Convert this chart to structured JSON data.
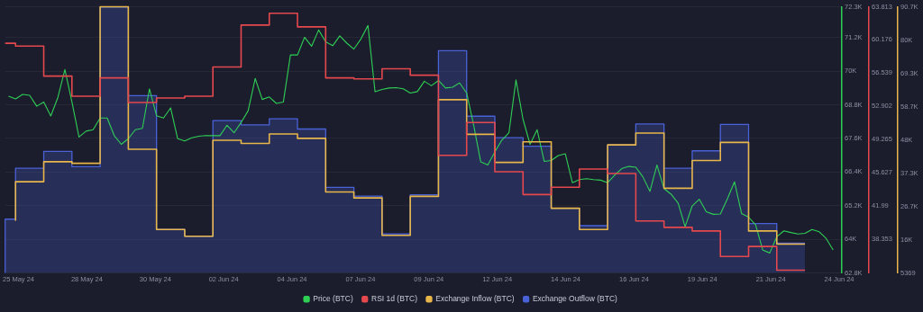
{
  "chart_data": {
    "type": "line",
    "xlim": [
      "--05-24T15:10",
      "--06-23T07:25"
    ],
    "xticks": [
      {
        "value": "--05-25T02:30",
        "label": "25 May 24"
      },
      {
        "value": "--05-27T12:45",
        "label": "28 May 24"
      },
      {
        "value": "--05-29T23:00",
        "label": "30 May 24"
      },
      {
        "value": "--06-01T09:10",
        "label": "02 Jun 24"
      },
      {
        "value": "--06-03T19:25",
        "label": "04 Jun 24"
      },
      {
        "value": "--06-06T05:35",
        "label": "07 Jun 24"
      },
      {
        "value": "--06-08T15:50",
        "label": "09 Jun 24"
      },
      {
        "value": "--06-11T02:00",
        "label": "12 Jun 24"
      },
      {
        "value": "--06-13T12:15",
        "label": "14 Jun 24"
      },
      {
        "value": "--06-15T22:30",
        "label": "16 Jun 24"
      },
      {
        "value": "--06-18T08:40",
        "label": "19 Jun 24"
      },
      {
        "value": "--06-20T18:55",
        "label": "21 Jun 24"
      },
      {
        "value": "--06-23T05:10",
        "label": "24 Jun 24"
      }
    ],
    "ylim": [
      62800,
      72300
    ],
    "yticks": [
      {
        "value": 62800,
        "label": "62.8K"
      },
      {
        "value": 64000,
        "label": "64K"
      },
      {
        "value": 65200,
        "label": "65.2K"
      },
      {
        "value": 66400,
        "label": "66.4K"
      },
      {
        "value": 67600,
        "label": "67.6K"
      },
      {
        "value": 68800,
        "label": "68.8K"
      },
      {
        "value": 70000,
        "label": "70K"
      },
      {
        "value": 71200,
        "label": "71.2K"
      },
      {
        "value": 72300,
        "label": "72.3K"
      }
    ],
    "y2lim": [
      34.6,
      63.813
    ],
    "y2ticks": [
      38.353,
      41.99,
      45.627,
      49.265,
      52.902,
      56.539,
      60.176,
      63.813
    ],
    "y3lim": [
      5369,
      90700
    ],
    "y3ticks": [
      5369,
      {
        "value": 16000,
        "label": "16K"
      },
      {
        "value": 26700,
        "label": "26.7K"
      },
      {
        "value": 37300,
        "label": "37.3K"
      },
      {
        "value": 48000,
        "label": "48K"
      },
      {
        "value": 58700,
        "label": "58.7K"
      },
      {
        "value": 69300,
        "label": "69.3K"
      },
      {
        "value": 80000,
        "label": "80K"
      },
      {
        "value": 90700,
        "label": "90.7K"
      }
    ],
    "grid": "y",
    "legend": "bottom",
    "marker": "none",
    "line_style": "solid",
    "series": [
      {
        "name": "Price (BTC)",
        "axis": "y",
        "color": "#2fcf55",
        "x": [
          "--05-24T18:00",
          "--05-25T00:00",
          "--05-25T06:00",
          "--05-25T12:00",
          "--05-25T18:00",
          "--05-26T00:00",
          "--05-26T06:00",
          "--05-26T12:00",
          "--05-26T18:00",
          "--05-27T00:00",
          "--05-27T06:00",
          "--05-27T12:00",
          "--05-27T18:00",
          "--05-28T00:00",
          "--05-28T06:00",
          "--05-28T12:00",
          "--05-28T18:00",
          "--05-29T00:00",
          "--05-29T06:00",
          "--05-29T12:00",
          "--05-29T18:00",
          "--05-30T00:00",
          "--05-30T06:00",
          "--05-30T12:00",
          "--05-30T18:00",
          "--05-31T00:00",
          "--05-31T06:00",
          "--05-31T12:00",
          "--05-31T18:00",
          "--06-01T00:00",
          "--06-01T06:00",
          "--06-01T12:00",
          "--06-01T18:00",
          "--06-02T00:00",
          "--06-02T06:00",
          "--06-02T12:00",
          "--06-02T18:00",
          "--06-03T00:00",
          "--06-03T06:00",
          "--06-03T12:00",
          "--06-03T18:00",
          "--06-04T00:00",
          "--06-04T06:00",
          "--06-04T12:00",
          "--06-04T18:00",
          "--06-05T00:00",
          "--06-05T06:00",
          "--06-05T12:00",
          "--06-05T18:00",
          "--06-06T00:00",
          "--06-06T06:00",
          "--06-06T12:00",
          "--06-06T18:00",
          "--06-07T00:00",
          "--06-07T06:00",
          "--06-07T12:00",
          "--06-07T18:00",
          "--06-08T00:00",
          "--06-08T06:00",
          "--06-08T12:00",
          "--06-08T18:00",
          "--06-09T00:00",
          "--06-09T06:00",
          "--06-09T12:00",
          "--06-09T18:00",
          "--06-10T00:00",
          "--06-10T06:00",
          "--06-10T12:00",
          "--06-10T18:00",
          "--06-11T00:00",
          "--06-11T06:00",
          "--06-11T12:00",
          "--06-11T18:00",
          "--06-12T00:00",
          "--06-12T06:00",
          "--06-12T12:00",
          "--06-12T18:00",
          "--06-13T00:00",
          "--06-13T06:00",
          "--06-13T12:00",
          "--06-13T18:00",
          "--06-14T00:00",
          "--06-14T06:00",
          "--06-14T12:00",
          "--06-14T18:00",
          "--06-15T00:00",
          "--06-15T06:00",
          "--06-15T12:00",
          "--06-15T18:00",
          "--06-16T00:00",
          "--06-16T06:00",
          "--06-16T12:00",
          "--06-16T18:00",
          "--06-17T00:00",
          "--06-17T06:00",
          "--06-17T12:00",
          "--06-17T18:00",
          "--06-18T00:00",
          "--06-18T06:00",
          "--06-18T12:00",
          "--06-18T18:00",
          "--06-19T00:00",
          "--06-19T06:00",
          "--06-19T12:00",
          "--06-19T18:00",
          "--06-20T00:00",
          "--06-20T06:00",
          "--06-20T12:00",
          "--06-20T18:00",
          "--06-21T00:00",
          "--06-21T06:00",
          "--06-21T12:00",
          "--06-21T18:00",
          "--06-22T00:00",
          "--06-22T06:00",
          "--06-22T12:00",
          "--06-22T18:00",
          "--06-23T00:00"
        ],
        "values": [
          69110,
          69010,
          69170,
          69140,
          68750,
          68900,
          68400,
          69060,
          70060,
          68900,
          67650,
          67860,
          67910,
          68330,
          68330,
          67700,
          67390,
          67590,
          67910,
          67960,
          69370,
          68410,
          68330,
          68690,
          67590,
          67510,
          67620,
          67680,
          67700,
          67700,
          67700,
          68070,
          67800,
          68170,
          68590,
          69740,
          68990,
          69080,
          68850,
          68900,
          70580,
          70580,
          71210,
          70890,
          71470,
          71050,
          70910,
          71260,
          71000,
          70790,
          71150,
          71630,
          69270,
          69350,
          69400,
          69410,
          69370,
          69220,
          69270,
          69640,
          69480,
          69670,
          69400,
          69430,
          69580,
          69220,
          68070,
          66760,
          66650,
          67120,
          67540,
          67800,
          69690,
          68280,
          67390,
          67910,
          66780,
          66810,
          66990,
          67050,
          66020,
          66130,
          66160,
          66130,
          66110,
          66020,
          66290,
          66520,
          66600,
          66570,
          66230,
          65710,
          66650,
          65810,
          65610,
          65290,
          64450,
          65190,
          65430,
          64980,
          64890,
          64900,
          65450,
          66050,
          64920,
          64790,
          64510,
          63620,
          63510,
          64090,
          64300,
          64240,
          64190,
          64210,
          64350,
          64270,
          64030,
          63620
        ]
      },
      {
        "name": "RSI 1d (BTC)",
        "type": "step",
        "axis": "y2",
        "color": "#e5484d",
        "x": [
          "--05-24T15:10",
          "--05-25",
          "--05-26",
          "--05-27",
          "--05-28",
          "--05-29",
          "--05-30",
          "--05-31",
          "--06-01",
          "--06-02",
          "--06-03",
          "--06-04",
          "--06-05",
          "--06-06",
          "--06-07",
          "--06-08",
          "--06-09",
          "--06-10",
          "--06-11",
          "--06-12",
          "--06-13",
          "--06-14",
          "--06-15",
          "--06-16",
          "--06-17",
          "--06-18",
          "--06-19",
          "--06-20",
          "--06-21",
          "--06-22"
        ],
        "values": [
          59.8,
          59.8,
          59.5,
          56.2,
          54.0,
          56.0,
          53.3,
          53.8,
          54.0,
          57.2,
          61.8,
          63.1,
          61.6,
          56.0,
          55.9,
          57.0,
          56.3,
          47.5,
          51.1,
          45.7,
          43.2,
          44.0,
          46.0,
          45.5,
          40.3,
          39.6,
          39.2,
          36.4,
          37.5,
          34.9
        ]
      },
      {
        "name": "Exchange Inflow (BTC)",
        "type": "step",
        "axis": "y3",
        "color": "#e8b64a",
        "x": [
          "--05-25",
          "--05-26",
          "--05-27",
          "--05-28",
          "--05-29",
          "--05-30",
          "--05-31",
          "--06-01",
          "--06-02",
          "--06-03",
          "--06-04",
          "--06-05",
          "--06-06",
          "--06-07",
          "--06-08",
          "--06-09",
          "--06-10",
          "--06-11",
          "--06-12",
          "--06-13",
          "--06-14",
          "--06-15",
          "--06-16",
          "--06-17",
          "--06-18",
          "--06-19",
          "--06-20",
          "--06-21",
          "--06-22"
        ],
        "values": [
          22100,
          34600,
          41000,
          40500,
          90700,
          45000,
          19300,
          17100,
          47900,
          46900,
          49900,
          48500,
          31300,
          29400,
          17400,
          29900,
          60900,
          49800,
          40800,
          47400,
          26100,
          19300,
          46400,
          50200,
          32500,
          41400,
          47200,
          18800,
          14600
        ]
      },
      {
        "name": "Exchange Outflow (BTC)",
        "type": "area",
        "axis": "y3",
        "color": "#4a62d8",
        "x": [
          "--05-24T15:10",
          "--05-25",
          "--05-26",
          "--05-27",
          "--05-28",
          "--05-29",
          "--05-30",
          "--05-31",
          "--06-01",
          "--06-02",
          "--06-03",
          "--06-04",
          "--06-05",
          "--06-06",
          "--06-07",
          "--06-08",
          "--06-09",
          "--06-10",
          "--06-11",
          "--06-12",
          "--06-13",
          "--06-14",
          "--06-15",
          "--06-16",
          "--06-17",
          "--06-18",
          "--06-19",
          "--06-20",
          "--06-21",
          "--06-22"
        ],
        "values": [
          5369,
          22600,
          38900,
          44300,
          39400,
          90600,
          62200,
          19300,
          17100,
          54200,
          52800,
          54800,
          51500,
          32800,
          30000,
          17900,
          30400,
          76600,
          55600,
          48700,
          46000,
          26100,
          20500,
          46400,
          53100,
          38900,
          44500,
          53000,
          21200,
          14900
        ]
      }
    ]
  }
}
